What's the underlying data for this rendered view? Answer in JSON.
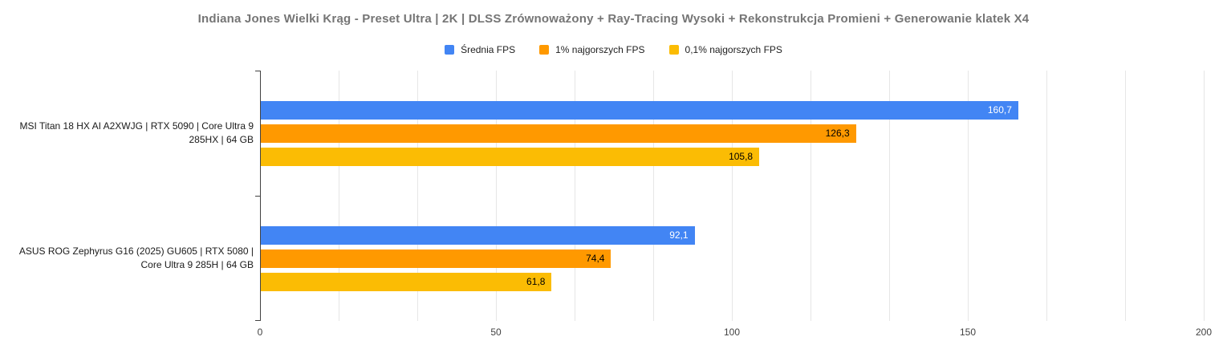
{
  "chart_data": {
    "type": "bar",
    "orientation": "horizontal",
    "title": "Indiana Jones Wielki Krąg - Preset Ultra | 2K | DLSS Zrównoważony + Ray-Tracing Wysoki + Rekonstrukcja Promieni + Generowanie klatek X4",
    "categories": [
      "MSI Titan 18 HX AI A2XWJG | RTX 5090 | Core Ultra 9 285HX | 64 GB",
      "ASUS ROG Zephyrus G16 (2025) GU605 | RTX 5080 | Core Ultra 9 285H | 64 GB"
    ],
    "series": [
      {
        "key": "avg-fps",
        "name": "Średnia FPS",
        "color": "#4285f4",
        "label_color": "#ffffff",
        "values": [
          160.7,
          92.1
        ],
        "value_labels": [
          "160,7",
          "92,1"
        ]
      },
      {
        "key": "low-1pct-fps",
        "name": "1% najgorszych FPS",
        "color": "#ff9900",
        "label_color": "#000000",
        "values": [
          126.3,
          74.4
        ],
        "value_labels": [
          "126,3",
          "74,4"
        ]
      },
      {
        "key": "low-0-1pct-fps",
        "name": "0,1% najgorszych FPS",
        "color": "#fbbc04",
        "label_color": "#000000",
        "values": [
          105.8,
          61.8
        ],
        "value_labels": [
          "105,8",
          "61,8"
        ]
      }
    ],
    "xlim": [
      0,
      200
    ],
    "x_ticks": [
      0,
      50,
      100,
      150,
      200
    ],
    "minor_gridlines_per_interval": 3,
    "grid": true,
    "legend_position": "top",
    "xlabel": "",
    "ylabel": ""
  }
}
